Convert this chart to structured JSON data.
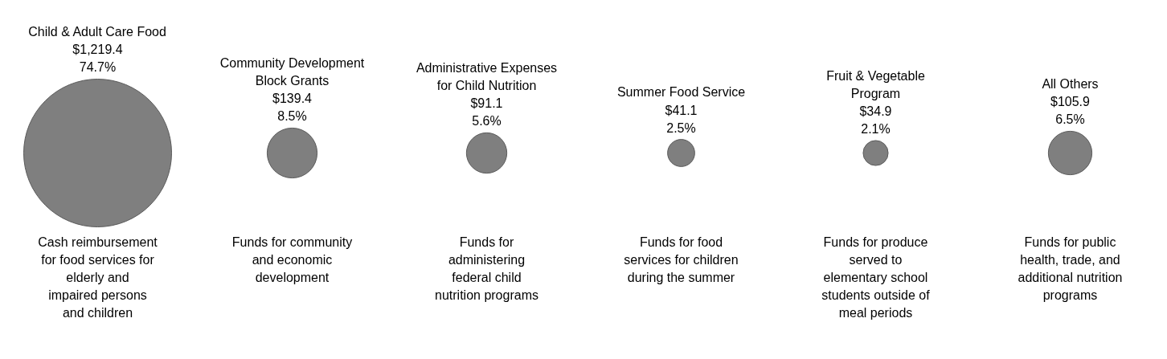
{
  "chart_data": {
    "type": "other",
    "color": "#7f7f7f",
    "categories": [
      "Child & Adult Care Food",
      "Community Development\nBlock Grants",
      "Administrative Expenses\nfor Child Nutrition",
      "Summer Food Service",
      "Fruit & Vegetable\nProgram",
      "All Others"
    ],
    "values": [
      1219.4,
      139.4,
      91.1,
      41.1,
      34.9,
      105.9
    ],
    "value_labels": [
      "$1,219.4\n74.7%",
      "$139.4\n8.5%",
      "$91.1\n5.6%",
      "$41.1\n2.5%",
      "$34.9\n2.1%",
      "$105.9\n6.5%"
    ],
    "annotations": [
      {
        "text": "Cash reimbursement\nfor food services for\nelderly and\nimpaired persons\nand children",
        "x": "Child & Adult Care Food"
      },
      {
        "text": "Funds for community\nand economic\ndevelopment",
        "x": "Community Development\nBlock Grants"
      },
      {
        "text": "Funds for\nadministering\nfederal child\nnutrition programs",
        "x": "Administrative Expenses\nfor Child Nutrition"
      },
      {
        "text": "Funds for food\nservices for children\nduring the summer",
        "x": "Summer Food Service"
      },
      {
        "text": "Funds for produce\nserved to\nelementary school\nstudents outside of\nmeal periods",
        "x": "Fruit & Vegetable\nProgram"
      },
      {
        "text": "Funds for public\nhealth, trade, and\nadditional nutrition\nprograms",
        "x": "All Others"
      }
    ]
  }
}
